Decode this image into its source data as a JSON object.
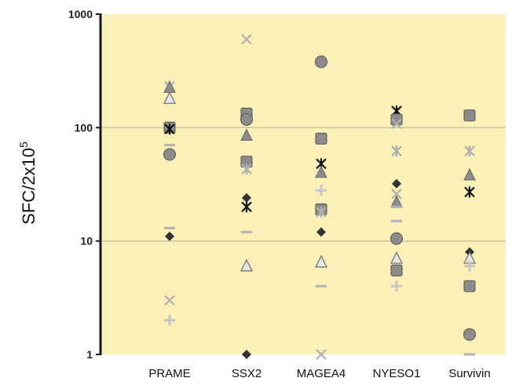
{
  "chart_data": {
    "type": "scatter",
    "title": "",
    "xlabel": "",
    "ylabel": "SFC/2x10",
    "ylabel_superscript": "5",
    "yscale": "log",
    "ylim": [
      1,
      1000
    ],
    "yticks": [
      "1",
      "10",
      "100",
      "1000"
    ],
    "grid": "horizontal",
    "categories": [
      "PRAME",
      "SSX2",
      "MAGEA4",
      "NYESO1",
      "Survivin"
    ],
    "colors": {
      "plot_background": "#faf1b8",
      "gridline": "#c9c3a0",
      "axis": "#1a1a1a",
      "dark_marker": "#333333",
      "mid_marker": "#8c8c8c",
      "light_marker": "#c6c6c6",
      "pale_marker": "#b0b0b0"
    },
    "points": [
      {
        "category": "PRAME",
        "marker": "star",
        "value": 230
      },
      {
        "category": "PRAME",
        "marker": "triangle",
        "value": 225
      },
      {
        "category": "PRAME",
        "marker": "triangle-open",
        "value": 180
      },
      {
        "category": "PRAME",
        "marker": "square",
        "value": 100
      },
      {
        "category": "PRAME",
        "marker": "asterisk",
        "value": 97
      },
      {
        "category": "PRAME",
        "marker": "dash",
        "value": 70
      },
      {
        "category": "PRAME",
        "marker": "circle",
        "value": 58
      },
      {
        "category": "PRAME",
        "marker": "dash",
        "value": 13
      },
      {
        "category": "PRAME",
        "marker": "diamond",
        "value": 11
      },
      {
        "category": "PRAME",
        "marker": "x",
        "value": 3
      },
      {
        "category": "PRAME",
        "marker": "plus",
        "value": 2
      },
      {
        "category": "SSX2",
        "marker": "x",
        "value": 600
      },
      {
        "category": "SSX2",
        "marker": "square",
        "value": 133
      },
      {
        "category": "SSX2",
        "marker": "circle",
        "value": 118
      },
      {
        "category": "SSX2",
        "marker": "triangle",
        "value": 85
      },
      {
        "category": "SSX2",
        "marker": "square",
        "value": 50
      },
      {
        "category": "SSX2",
        "marker": "star",
        "value": 43
      },
      {
        "category": "SSX2",
        "marker": "diamond",
        "value": 24
      },
      {
        "category": "SSX2",
        "marker": "asterisk",
        "value": 20
      },
      {
        "category": "SSX2",
        "marker": "dash",
        "value": 12
      },
      {
        "category": "SSX2",
        "marker": "triangle-open",
        "value": 6
      },
      {
        "category": "SSX2",
        "marker": "diamond",
        "value": 1
      },
      {
        "category": "MAGEA4",
        "marker": "circle",
        "value": 380
      },
      {
        "category": "MAGEA4",
        "marker": "square",
        "value": 80
      },
      {
        "category": "MAGEA4",
        "marker": "asterisk",
        "value": 48
      },
      {
        "category": "MAGEA4",
        "marker": "triangle",
        "value": 40
      },
      {
        "category": "MAGEA4",
        "marker": "plus",
        "value": 28
      },
      {
        "category": "MAGEA4",
        "marker": "square",
        "value": 19
      },
      {
        "category": "MAGEA4",
        "marker": "star",
        "value": 18
      },
      {
        "category": "MAGEA4",
        "marker": "diamond",
        "value": 12
      },
      {
        "category": "MAGEA4",
        "marker": "triangle-open",
        "value": 6.5
      },
      {
        "category": "MAGEA4",
        "marker": "dash",
        "value": 4
      },
      {
        "category": "MAGEA4",
        "marker": "x",
        "value": 1
      },
      {
        "category": "NYESO1",
        "marker": "asterisk",
        "value": 140
      },
      {
        "category": "NYESO1",
        "marker": "square",
        "value": 118
      },
      {
        "category": "NYESO1",
        "marker": "x",
        "value": 108
      },
      {
        "category": "NYESO1",
        "marker": "star",
        "value": 62
      },
      {
        "category": "NYESO1",
        "marker": "diamond",
        "value": 32
      },
      {
        "category": "NYESO1",
        "marker": "x",
        "value": 26
      },
      {
        "category": "NYESO1",
        "marker": "triangle",
        "value": 22
      },
      {
        "category": "NYESO1",
        "marker": "dash",
        "value": 20
      },
      {
        "category": "NYESO1",
        "marker": "dash",
        "value": 15
      },
      {
        "category": "NYESO1",
        "marker": "circle",
        "value": 10.5
      },
      {
        "category": "NYESO1",
        "marker": "triangle-open",
        "value": 7
      },
      {
        "category": "NYESO1",
        "marker": "square",
        "value": 5.5
      },
      {
        "category": "NYESO1",
        "marker": "plus",
        "value": 4
      },
      {
        "category": "Survivin",
        "marker": "square",
        "value": 128
      },
      {
        "category": "Survivin",
        "marker": "star",
        "value": 62
      },
      {
        "category": "Survivin",
        "marker": "triangle",
        "value": 38
      },
      {
        "category": "Survivin",
        "marker": "asterisk",
        "value": 27
      },
      {
        "category": "Survivin",
        "marker": "diamond",
        "value": 8
      },
      {
        "category": "Survivin",
        "marker": "triangle-open",
        "value": 7
      },
      {
        "category": "Survivin",
        "marker": "plus",
        "value": 6
      },
      {
        "category": "Survivin",
        "marker": "square",
        "value": 4
      },
      {
        "category": "Survivin",
        "marker": "circle",
        "value": 1.5
      },
      {
        "category": "Survivin",
        "marker": "dash",
        "value": 1
      }
    ]
  }
}
